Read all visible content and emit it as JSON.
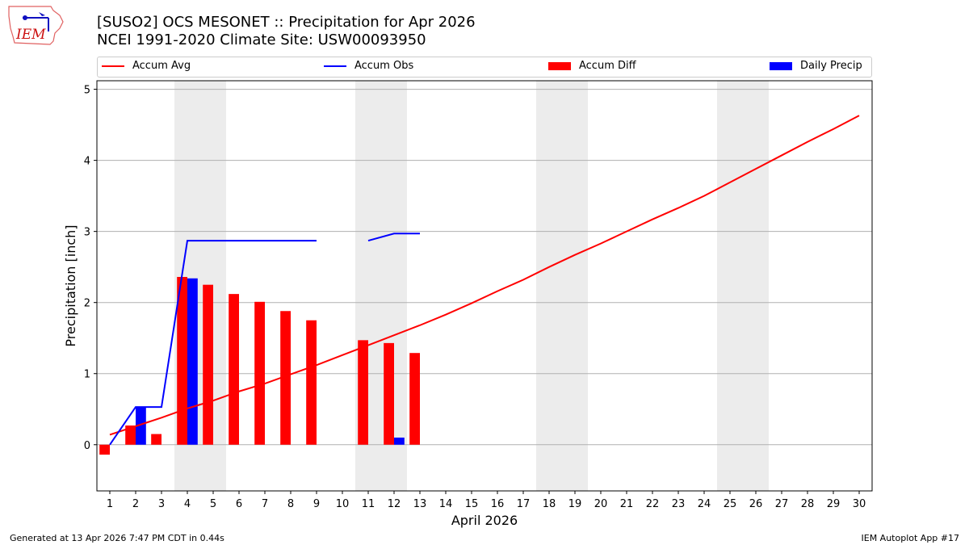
{
  "header": {
    "title": "[SUSO2] OCS MESONET :: Precipitation for Apr 2026",
    "subtitle": "NCEI 1991-2020 Climate Site: USW00093950"
  },
  "logo": {
    "text": "IEM"
  },
  "footer": {
    "left": "Generated at 13 Apr 2026 7:47 PM CDT in 0.44s",
    "right": "IEM Autoplot App #17"
  },
  "chart_data": {
    "type": "bar+line",
    "xlabel": "April 2026",
    "ylabel": "Precipitation [inch]",
    "xlim": [
      0.5,
      30.5
    ],
    "ylim": [
      -0.65,
      5.12
    ],
    "x_ticks": [
      1,
      2,
      3,
      4,
      5,
      6,
      7,
      8,
      9,
      10,
      11,
      12,
      13,
      14,
      15,
      16,
      17,
      18,
      19,
      20,
      21,
      22,
      23,
      24,
      25,
      26,
      27,
      28,
      29,
      30
    ],
    "y_ticks": [
      0,
      1,
      2,
      3,
      4,
      5
    ],
    "grid": "horizontal",
    "legend_position": "top",
    "weekend_shading": [
      [
        3.5,
        5.5
      ],
      [
        10.5,
        12.5
      ],
      [
        17.5,
        19.5
      ],
      [
        24.5,
        26.5
      ]
    ],
    "series": [
      {
        "name": "Accum Avg",
        "type": "line",
        "color": "#ff0000",
        "x": [
          1,
          2,
          3,
          4,
          5,
          6,
          7,
          8,
          9,
          10,
          11,
          12,
          13,
          14,
          15,
          16,
          17,
          18,
          19,
          20,
          21,
          22,
          23,
          24,
          25,
          26,
          27,
          28,
          29,
          30
        ],
        "values": [
          0.14,
          0.26,
          0.38,
          0.51,
          0.62,
          0.75,
          0.86,
          0.99,
          1.12,
          1.26,
          1.4,
          1.54,
          1.68,
          1.83,
          1.99,
          2.16,
          2.32,
          2.5,
          2.67,
          2.83,
          3.0,
          3.17,
          3.33,
          3.5,
          3.69,
          3.88,
          4.07,
          4.26,
          4.44,
          4.63
        ]
      },
      {
        "name": "Accum Obs",
        "type": "line",
        "color": "#0000ff",
        "x": [
          1,
          2,
          3,
          4,
          5,
          6,
          7,
          8,
          9,
          10,
          11,
          12,
          13
        ],
        "values": [
          0,
          0.53,
          0.53,
          2.87,
          2.87,
          2.87,
          2.87,
          2.87,
          2.87,
          null,
          2.87,
          2.97,
          2.97
        ]
      },
      {
        "name": "Accum Diff",
        "type": "bar",
        "color": "#ff0000",
        "x": [
          1,
          2,
          3,
          4,
          5,
          6,
          7,
          8,
          9,
          11,
          12,
          13
        ],
        "values": [
          -0.14,
          0.27,
          0.15,
          2.36,
          2.25,
          2.12,
          2.01,
          1.88,
          1.75,
          1.47,
          1.43,
          1.29
        ]
      },
      {
        "name": "Daily Precip",
        "type": "bar",
        "color": "#0000ff",
        "x": [
          2,
          4,
          12
        ],
        "values": [
          0.53,
          2.34,
          0.1
        ]
      }
    ]
  }
}
